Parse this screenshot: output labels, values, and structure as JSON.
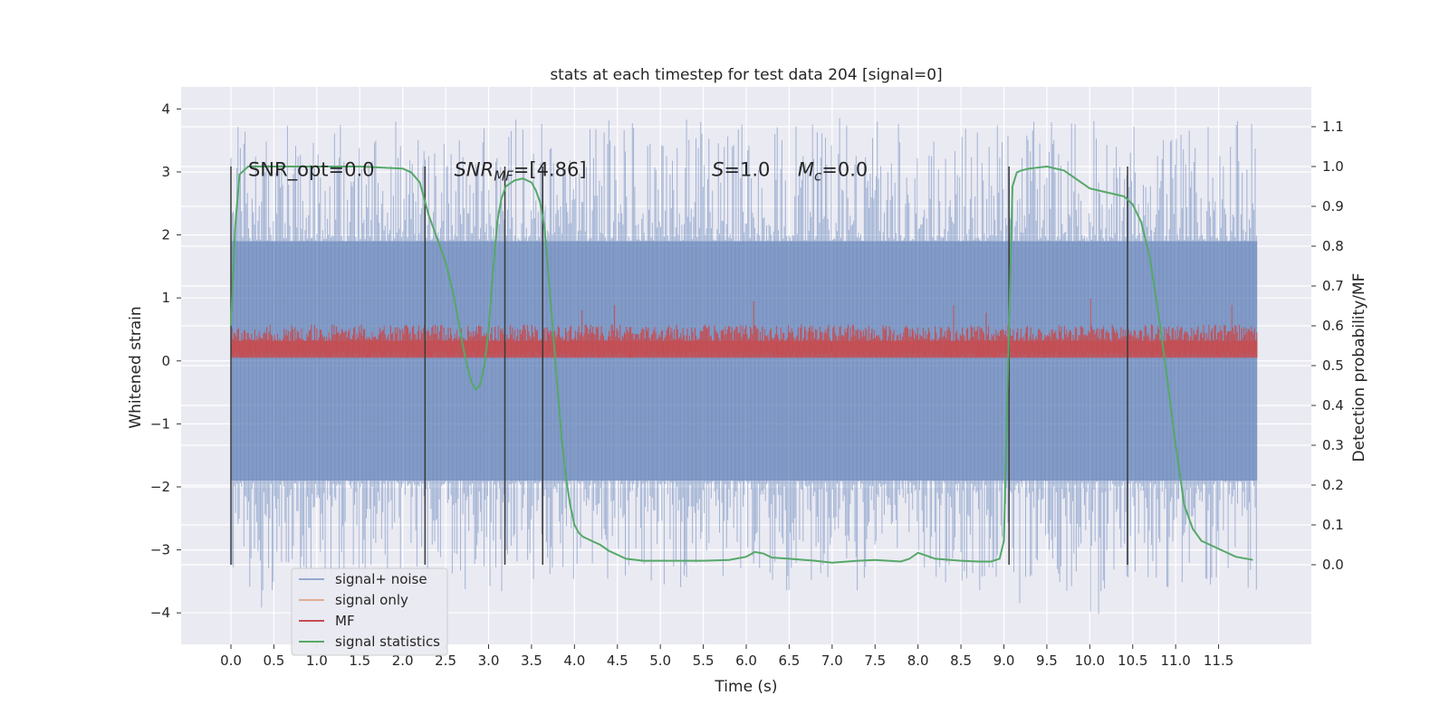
{
  "chart_data": {
    "type": "line",
    "title": "stats at each timestep for test data 204 [signal=0]",
    "xlabel": "Time (s)",
    "ylabel": "Whitened strain",
    "ylabel_right": "Detection probability/MF",
    "xlim": [
      -0.58,
      12.58
    ],
    "ylim": [
      -4.5,
      4.35
    ],
    "ylim_right": [
      -0.2,
      1.2
    ],
    "x_ticks": [
      "0.0",
      "0.5",
      "1.0",
      "1.5",
      "2.0",
      "2.5",
      "3.0",
      "3.5",
      "4.0",
      "4.5",
      "5.0",
      "5.5",
      "6.0",
      "6.5",
      "7.0",
      "7.5",
      "8.0",
      "8.5",
      "9.0",
      "9.5",
      "10.0",
      "10.5",
      "11.0",
      "11.5"
    ],
    "y_ticks": [
      "4",
      "3",
      "2",
      "1",
      "0",
      "−1",
      "−2",
      "−3",
      "−4"
    ],
    "y_ticks_right": [
      "1.1",
      "1.0",
      "0.9",
      "0.8",
      "0.7",
      "0.6",
      "0.5",
      "0.4",
      "0.3",
      "0.2",
      "0.1",
      "0.0"
    ],
    "grid": true,
    "legend_position": "lower-left",
    "colors": {
      "background": "#eaeaf2",
      "grid": "#ffffff",
      "noise": "#4c72b0",
      "signal_only": "#dd8452",
      "mf": "#c44e52",
      "statistics": "#55a868",
      "vlines": "#3a3a3a"
    },
    "series": [
      {
        "name": "signal+ noise",
        "kind": "noise",
        "t_range": [
          0.0,
          11.95
        ],
        "band": [
          -1.9,
          1.9
        ],
        "spike_min": -4.1,
        "spike_max": 3.95
      },
      {
        "name": "signal only",
        "kind": "flat",
        "values": []
      },
      {
        "name": "MF",
        "kind": "mf",
        "t_range": [
          0.0,
          11.95
        ],
        "band": [
          0.05,
          0.55
        ],
        "spike_max": 1.0
      },
      {
        "name": "signal statistics",
        "kind": "line",
        "x": [
          0.0,
          0.05,
          0.1,
          0.2,
          0.5,
          1.0,
          1.5,
          2.0,
          2.1,
          2.2,
          2.3,
          2.4,
          2.5,
          2.6,
          2.7,
          2.75,
          2.8,
          2.85,
          2.9,
          2.95,
          3.0,
          3.05,
          3.1,
          3.15,
          3.2,
          3.3,
          3.4,
          3.5,
          3.55,
          3.6,
          3.65,
          3.7,
          3.8,
          3.85,
          3.9,
          3.95,
          4.0,
          4.05,
          4.1,
          4.2,
          4.3,
          4.4,
          4.5,
          4.6,
          4.8,
          5.0,
          5.5,
          5.8,
          6.0,
          6.1,
          6.2,
          6.3,
          6.5,
          6.8,
          7.0,
          7.3,
          7.5,
          7.8,
          7.9,
          8.0,
          8.2,
          8.5,
          8.7,
          8.85,
          8.95,
          9.0,
          9.05,
          9.1,
          9.15,
          9.2,
          9.3,
          9.5,
          9.7,
          9.9,
          10.0,
          10.2,
          10.4,
          10.5,
          10.6,
          10.7,
          10.8,
          10.9,
          11.0,
          11.1,
          11.2,
          11.3,
          11.5,
          11.7,
          11.9
        ],
        "values": [
          0.6,
          0.85,
          0.98,
          1.0,
          1.0,
          1.0,
          1.0,
          0.995,
          0.985,
          0.96,
          0.88,
          0.82,
          0.76,
          0.67,
          0.55,
          0.5,
          0.46,
          0.44,
          0.45,
          0.5,
          0.59,
          0.73,
          0.86,
          0.92,
          0.95,
          0.965,
          0.97,
          0.96,
          0.94,
          0.91,
          0.85,
          0.72,
          0.45,
          0.32,
          0.22,
          0.15,
          0.1,
          0.08,
          0.07,
          0.06,
          0.05,
          0.035,
          0.025,
          0.015,
          0.01,
          0.01,
          0.01,
          0.012,
          0.02,
          0.032,
          0.028,
          0.018,
          0.015,
          0.01,
          0.005,
          0.01,
          0.012,
          0.008,
          0.015,
          0.03,
          0.015,
          0.01,
          0.008,
          0.008,
          0.015,
          0.06,
          0.5,
          0.95,
          0.985,
          0.99,
          0.995,
          1.0,
          0.99,
          0.96,
          0.945,
          0.935,
          0.925,
          0.905,
          0.86,
          0.77,
          0.63,
          0.47,
          0.3,
          0.15,
          0.09,
          0.06,
          0.04,
          0.02,
          0.012
        ]
      }
    ],
    "vlines_x": [
      0.0,
      2.26,
      3.19,
      3.63,
      9.06,
      10.44
    ],
    "annotations": [
      {
        "text": "SNR_opt=0.0",
        "x": 0.2,
        "y": 3.05
      },
      {
        "text": "SNR",
        "sub": "MF",
        "suffix": "=[4.86]",
        "italic": true,
        "x": 2.6,
        "y": 3.05
      },
      {
        "text": "S",
        "suffix": "=1.0",
        "italic": true,
        "x": 5.6,
        "y": 3.05
      },
      {
        "text": "M",
        "sub": "c",
        "suffix": "=0.0",
        "italic": true,
        "x": 6.6,
        "y": 3.05
      }
    ]
  }
}
